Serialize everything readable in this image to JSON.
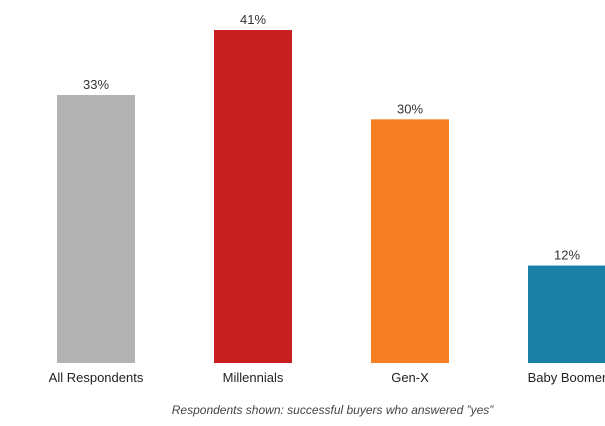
{
  "chart_data": {
    "type": "bar",
    "categories": [
      "All Respondents",
      "Millennials",
      "Gen-X",
      "Baby Boomer"
    ],
    "values": [
      33,
      41,
      30,
      12
    ],
    "value_labels": [
      "33%",
      "41%",
      "30%",
      "12%"
    ],
    "colors": [
      "#b3b3b3",
      "#c82021",
      "#f57f22",
      "#1a80a6"
    ],
    "ylim": [
      0,
      41
    ],
    "grid": false,
    "legend": "none",
    "note": "Respondents shown: successful buyers who answered ”yes”"
  }
}
